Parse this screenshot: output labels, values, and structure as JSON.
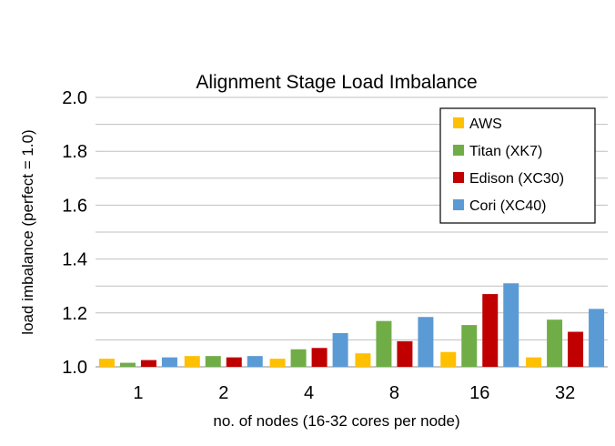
{
  "chart_data": {
    "type": "bar",
    "title": "Alignment Stage Load Imbalance",
    "xlabel": "no. of nodes (16-32 cores per node)",
    "ylabel": "load imbalance (perfect = 1.0)",
    "categories": [
      "1",
      "2",
      "4",
      "8",
      "16",
      "32"
    ],
    "ylim": [
      1.0,
      2.0
    ],
    "yticks": [
      "1.0",
      "1.2",
      "1.4",
      "1.6",
      "1.8",
      "2.0"
    ],
    "minor_gridlines": [
      1.1,
      1.3,
      1.5,
      1.7,
      1.9
    ],
    "grid": true,
    "legend_position": "top-right",
    "series": [
      {
        "name": "AWS",
        "color": "#FFC000",
        "values": [
          1.03,
          1.04,
          1.03,
          1.05,
          1.055,
          1.035
        ]
      },
      {
        "name": "Titan (XK7)",
        "color": "#70AD47",
        "values": [
          1.015,
          1.04,
          1.065,
          1.17,
          1.155,
          1.175
        ]
      },
      {
        "name": "Edison (XC30)",
        "color": "#C00000",
        "values": [
          1.025,
          1.035,
          1.07,
          1.095,
          1.27,
          1.13
        ]
      },
      {
        "name": "Cori (XC40)",
        "color": "#5B9BD5",
        "values": [
          1.035,
          1.04,
          1.125,
          1.185,
          1.31,
          1.215
        ]
      }
    ]
  }
}
